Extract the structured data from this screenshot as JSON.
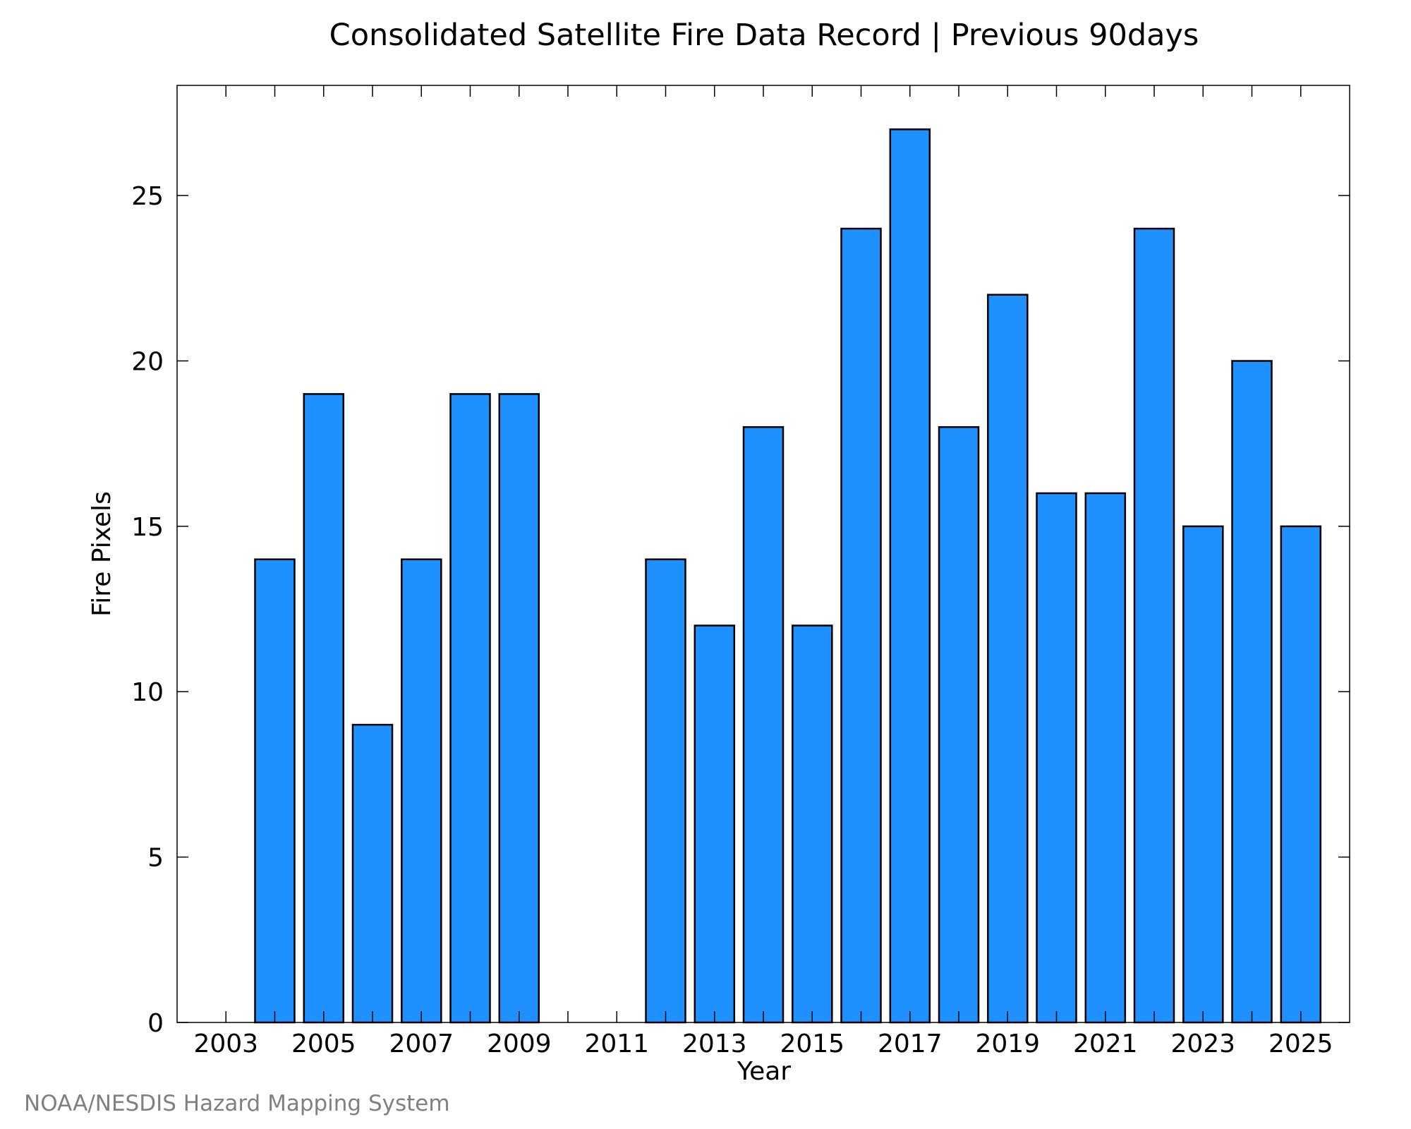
{
  "chart_data": {
    "type": "bar",
    "title": "Consolidated Satellite Fire Data Record | Previous 90days",
    "xlabel": "Year",
    "ylabel": "Fire Pixels",
    "categories": [
      2003,
      2004,
      2005,
      2006,
      2007,
      2008,
      2009,
      2010,
      2011,
      2012,
      2013,
      2014,
      2015,
      2016,
      2017,
      2018,
      2019,
      2020,
      2021,
      2022,
      2023,
      2024,
      2025
    ],
    "values": [
      0,
      14,
      19,
      9,
      14,
      19,
      19,
      0,
      0,
      14,
      12,
      18,
      12,
      24,
      27,
      18,
      22,
      16,
      16,
      24,
      15,
      20,
      15
    ],
    "xlim": [
      2002,
      2026
    ],
    "ylim": [
      0,
      28.33
    ],
    "xticks": [
      "2003",
      "2005",
      "2007",
      "2009",
      "2011",
      "2013",
      "2015",
      "2017",
      "2019",
      "2021",
      "2023",
      "2025"
    ],
    "yticks": [
      "0",
      "5",
      "10",
      "15",
      "20",
      "25"
    ],
    "grid": false,
    "bar_color": "#1e90ff",
    "bar_edge_color": "#000000"
  },
  "footer": "NOAA/NESDIS Hazard Mapping System"
}
